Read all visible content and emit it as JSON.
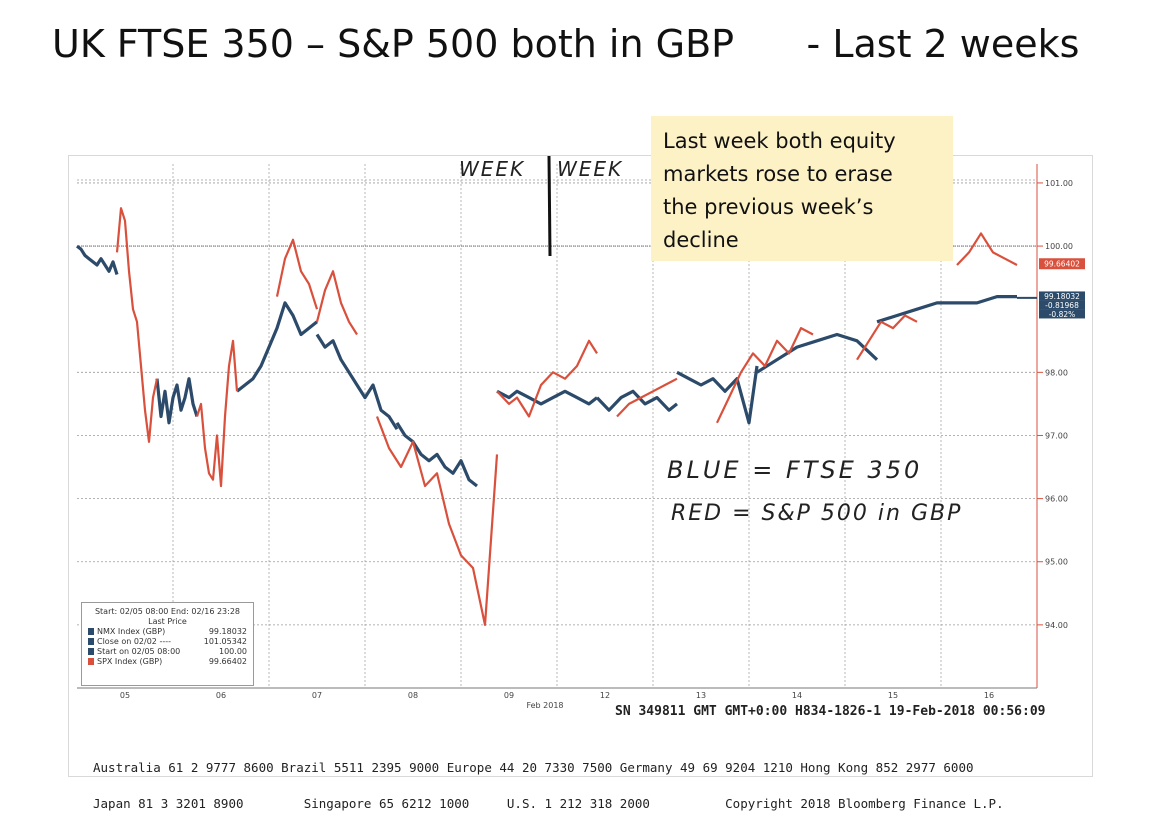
{
  "slide": {
    "title": "UK FTSE 350 – S&P 500 both in GBP      - Last 2 weeks",
    "note_lines": [
      "Last week both equity",
      "markets rose to erase",
      "the previous week’s",
      "decline"
    ]
  },
  "handwriting": {
    "week_left": "WEEK",
    "week_right": "WEEK",
    "blue_line": "BLUE = FTSE 350",
    "red_line": "RED = S&P 500 in GBP"
  },
  "legend": {
    "header": "Start: 02/05 08:00 End: 02/16 23:28",
    "subheader": "Last Price",
    "items": [
      {
        "label": "NMX Index (GBP)",
        "value": "99.18032",
        "color": "#2c4a6a"
      },
      {
        "label": "Close on 02/02 ----",
        "value": "101.05342",
        "color": "#2c4a6a"
      },
      {
        "label": "Start on 02/05 08:00",
        "value": "100.00",
        "color": "#2c4a6a"
      },
      {
        "label": "SPX Index (GBP)",
        "value": "99.66402",
        "color": "#d9503c"
      }
    ]
  },
  "footer": {
    "sn_line": "SN 349811 GMT  GMT+0:00 H834-1826-1 19-Feb-2018 00:56:09",
    "contacts_1": "Australia 61 2 9777 8600 Brazil 5511 2395 9000 Europe 44 20 7330 7500 Germany 49 69 9204 1210 Hong Kong 852 2977 6000",
    "contacts_2": "Japan 81 3 3201 8900        Singapore 65 6212 1000     U.S. 1 212 318 2000          Copyright 2018 Bloomberg Finance L.P."
  },
  "chart_data": {
    "type": "line",
    "title": "",
    "xlabel": "Feb 2018",
    "ylabel": "",
    "ylim": [
      93.0,
      101.3
    ],
    "yticks": [
      "101.00",
      "100.00",
      "98.00",
      "97.00",
      "96.00",
      "95.00",
      "94.00"
    ],
    "xticks": [
      "05",
      "06",
      "07",
      "08",
      "09",
      "12",
      "13",
      "14",
      "15",
      "16"
    ],
    "right_labels": {
      "red_last": "99.66402",
      "blue_last": "99.18032",
      "change": "-0.81968",
      "pct": "-0.82%"
    },
    "colors": {
      "blue": "#2c4a6a",
      "red": "#d9503c",
      "grid": "#9a9a9a",
      "axis": "#d9503c"
    },
    "series": [
      {
        "name": "NMX Index (GBP)",
        "color": "#2c4a6a",
        "segments": [
          {
            "x": [
              0.0,
              0.1,
              0.2,
              0.3,
              0.4,
              0.5,
              0.6,
              0.7,
              0.8,
              0.9,
              1.0
            ],
            "y": [
              100.0,
              99.95,
              99.85,
              99.8,
              99.75,
              99.7,
              99.8,
              99.7,
              99.6,
              99.75,
              99.55
            ]
          },
          {
            "x": [
              2.0,
              2.1,
              2.2,
              2.3,
              2.4,
              2.5,
              2.6,
              2.7,
              2.8,
              2.9,
              3.0
            ],
            "y": [
              97.9,
              97.3,
              97.7,
              97.2,
              97.6,
              97.8,
              97.4,
              97.6,
              97.9,
              97.5,
              97.3
            ]
          },
          {
            "x": [
              4.0,
              4.2,
              4.4,
              4.6,
              4.8,
              5.0,
              5.2,
              5.4,
              5.6,
              5.8,
              6.0
            ],
            "y": [
              97.7,
              97.8,
              97.9,
              98.1,
              98.4,
              98.7,
              99.1,
              98.9,
              98.6,
              98.7,
              98.8
            ]
          },
          {
            "x": [
              6.0,
              6.2,
              6.4,
              6.6,
              6.8,
              7.0,
              7.2,
              7.4,
              7.6,
              7.8,
              8.0
            ],
            "y": [
              98.6,
              98.4,
              98.5,
              98.2,
              98.0,
              97.8,
              97.6,
              97.8,
              97.4,
              97.3,
              97.1
            ]
          },
          {
            "x": [
              8.0,
              8.2,
              8.4,
              8.6,
              8.8,
              9.0,
              9.2,
              9.4,
              9.6,
              9.8,
              10.0
            ],
            "y": [
              97.2,
              97.0,
              96.9,
              96.7,
              96.6,
              96.7,
              96.5,
              96.4,
              96.6,
              96.3,
              96.2
            ]
          },
          {
            "x": [
              10.5,
              10.8,
              11.0,
              11.3,
              11.6,
              11.9,
              12.2,
              12.5,
              12.8,
              13.0
            ],
            "y": [
              97.7,
              97.6,
              97.7,
              97.6,
              97.5,
              97.6,
              97.7,
              97.6,
              97.5,
              97.6
            ]
          },
          {
            "x": [
              13.0,
              13.3,
              13.6,
              13.9,
              14.2,
              14.5,
              14.8,
              15.0
            ],
            "y": [
              97.6,
              97.4,
              97.6,
              97.7,
              97.5,
              97.6,
              97.4,
              97.5
            ]
          },
          {
            "x": [
              15.0,
              15.3,
              15.6,
              15.9,
              16.2,
              16.5,
              16.8,
              17.0
            ],
            "y": [
              98.0,
              97.9,
              97.8,
              97.9,
              97.7,
              97.9,
              97.2,
              98.1
            ]
          },
          {
            "x": [
              17.0,
              17.5,
              18.0,
              18.5,
              19.0,
              19.5,
              20.0
            ],
            "y": [
              98.0,
              98.2,
              98.4,
              98.5,
              98.6,
              98.5,
              98.2
            ]
          },
          {
            "x": [
              20.0,
              20.5,
              21.0,
              21.5,
              22.0,
              22.5,
              23.0,
              23.5
            ],
            "y": [
              98.8,
              98.9,
              99.0,
              99.1,
              99.1,
              99.1,
              99.2,
              99.2
            ]
          }
        ]
      },
      {
        "name": "SPX Index (GBP)",
        "color": "#d9503c",
        "segments": [
          {
            "x": [
              1.0,
              1.1,
              1.2,
              1.3,
              1.4,
              1.5,
              1.6,
              1.7,
              1.8,
              1.9,
              2.0
            ],
            "y": [
              99.9,
              100.6,
              100.4,
              99.6,
              99.0,
              98.8,
              98.1,
              97.4,
              96.9,
              97.6,
              97.9
            ]
          },
          {
            "x": [
              3.0,
              3.1,
              3.2,
              3.3,
              3.4,
              3.5,
              3.6,
              3.7,
              3.8,
              3.9,
              4.0
            ],
            "y": [
              97.3,
              97.5,
              96.8,
              96.4,
              96.3,
              97.0,
              96.2,
              97.3,
              98.1,
              98.5,
              97.7
            ]
          },
          {
            "x": [
              5.0,
              5.2,
              5.4,
              5.6,
              5.8,
              6.0
            ],
            "y": [
              99.2,
              99.8,
              100.1,
              99.6,
              99.4,
              99.0
            ]
          },
          {
            "x": [
              6.0,
              6.2,
              6.4,
              6.6,
              6.8,
              7.0
            ],
            "y": [
              98.8,
              99.3,
              99.6,
              99.1,
              98.8,
              98.6
            ]
          },
          {
            "x": [
              7.5,
              7.8,
              8.1,
              8.4,
              8.7,
              9.0,
              9.3,
              9.6,
              9.9,
              10.2,
              10.5
            ],
            "y": [
              97.3,
              96.8,
              96.5,
              96.9,
              96.2,
              96.4,
              95.6,
              95.1,
              94.9,
              94.0,
              96.7
            ]
          },
          {
            "x": [
              10.5,
              10.8,
              11.0,
              11.3,
              11.6,
              11.9,
              12.2,
              12.5,
              12.8,
              13.0
            ],
            "y": [
              97.7,
              97.5,
              97.6,
              97.3,
              97.8,
              98.0,
              97.9,
              98.1,
              98.5,
              98.3
            ]
          },
          {
            "x": [
              13.5,
              13.8,
              14.1,
              14.4,
              14.7,
              15.0
            ],
            "y": [
              97.3,
              97.5,
              97.6,
              97.7,
              97.8,
              97.9
            ]
          },
          {
            "x": [
              16.0,
              16.3,
              16.6,
              16.9,
              17.2,
              17.5,
              17.8,
              18.1,
              18.4
            ],
            "y": [
              97.2,
              97.6,
              98.0,
              98.3,
              98.1,
              98.5,
              98.3,
              98.7,
              98.6
            ]
          },
          {
            "x": [
              19.5,
              19.8,
              20.1,
              20.4,
              20.7,
              21.0
            ],
            "y": [
              98.2,
              98.5,
              98.8,
              98.7,
              98.9,
              98.8
            ]
          },
          {
            "x": [
              22.0,
              22.3,
              22.6,
              22.9,
              23.2,
              23.5
            ],
            "y": [
              99.7,
              99.9,
              100.2,
              99.9,
              99.8,
              99.7
            ]
          }
        ]
      }
    ]
  }
}
